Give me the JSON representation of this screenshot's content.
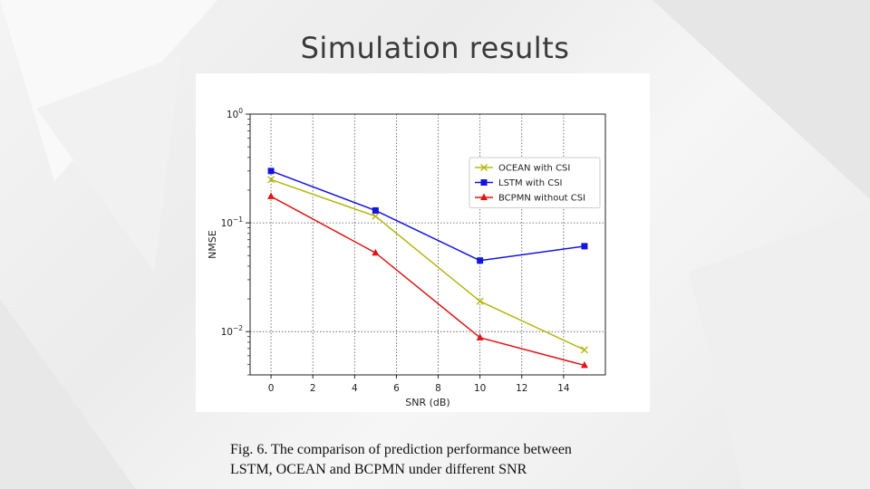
{
  "slide": {
    "title": "Simulation results",
    "caption_line1": "Fig. 6. The comparison of prediction performance between",
    "caption_line2": "LSTM, OCEAN and BCPMN under different SNR"
  },
  "chart_data": {
    "type": "line",
    "title": "",
    "xlabel": "SNR (dB)",
    "ylabel": "NMSE",
    "xlim": [
      -1,
      16
    ],
    "ylim": [
      0.004,
      1
    ],
    "y_scale": "log",
    "grid": true,
    "legend_position": "top-right",
    "x_ticks": [
      0,
      2,
      4,
      6,
      8,
      10,
      12,
      14
    ],
    "y_ticks": [
      {
        "value": 1,
        "label_base": "10",
        "label_exp": "0"
      },
      {
        "value": 0.1,
        "label_base": "10",
        "label_exp": "−1"
      },
      {
        "value": 0.01,
        "label_base": "10",
        "label_exp": "−2"
      }
    ],
    "series": [
      {
        "name": "OCEAN with CSI",
        "color": "#b5b50e",
        "marker": "x",
        "x": [
          0,
          5,
          10,
          15
        ],
        "y": [
          0.25,
          0.115,
          0.019,
          0.0068
        ]
      },
      {
        "name": "LSTM with CSI",
        "color": "#1414e0",
        "marker": "square",
        "x": [
          0,
          5,
          10,
          15
        ],
        "y": [
          0.3,
          0.13,
          0.045,
          0.061
        ]
      },
      {
        "name": "BCPMN without CSI",
        "color": "#e01414",
        "marker": "triangle",
        "x": [
          0,
          5,
          10,
          15
        ],
        "y": [
          0.175,
          0.053,
          0.0088,
          0.0049
        ]
      }
    ]
  }
}
